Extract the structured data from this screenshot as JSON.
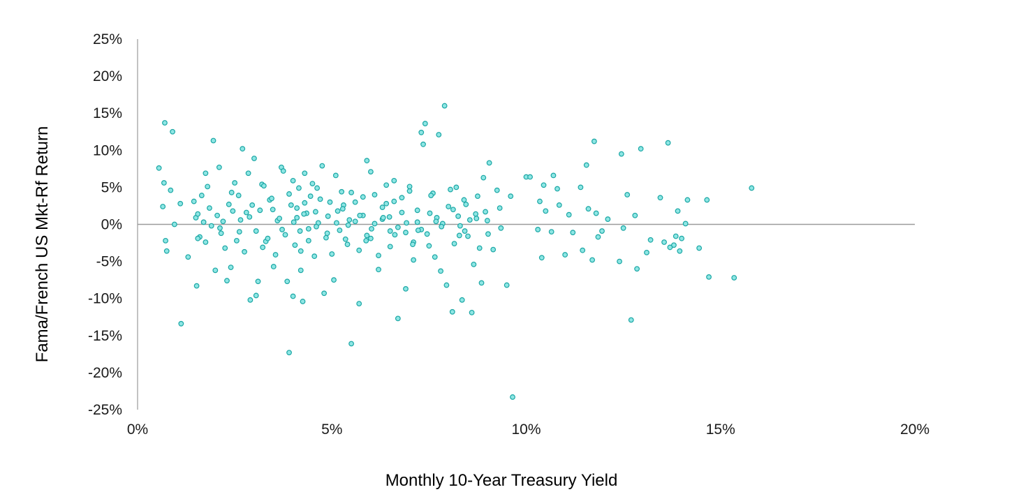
{
  "chart_data": {
    "type": "scatter",
    "title": "",
    "xlabel": "Monthly 10-Year Treasury Yield",
    "ylabel": "Fama/French US Mkt-Rf Return",
    "xlim": [
      0,
      20
    ],
    "ylim": [
      -25,
      25
    ],
    "x_ticks": [
      0,
      5,
      10,
      15,
      20
    ],
    "y_ticks": [
      25,
      20,
      15,
      10,
      5,
      0,
      -5,
      -10,
      -15,
      -20,
      -25
    ],
    "x_tick_labels": [
      "0%",
      "5%",
      "10%",
      "15%",
      "20%"
    ],
    "y_tick_labels": [
      "25%",
      "20%",
      "15%",
      "10%",
      "5%",
      "0%",
      "-5%",
      "-10%",
      "-15%",
      "-20%",
      "-25%"
    ],
    "grid": false,
    "legend": "none",
    "colors": {
      "marker_fill": "#8ee6e4",
      "marker_stroke": "#1aa6a4",
      "zero_line": "#9a9a9a",
      "axis_line": "#9a9a9a"
    },
    "series": [
      {
        "points": [
          [
            0.55,
            7.6
          ],
          [
            0.68,
            5.6
          ],
          [
            0.7,
            13.7
          ],
          [
            0.72,
            -2.2
          ],
          [
            0.75,
            -3.6
          ],
          [
            0.85,
            4.6
          ],
          [
            0.9,
            12.5
          ],
          [
            0.95,
            0.0
          ],
          [
            0.65,
            2.4
          ],
          [
            1.1,
            2.8
          ],
          [
            1.12,
            -13.4
          ],
          [
            1.3,
            -4.4
          ],
          [
            1.45,
            3.1
          ],
          [
            1.5,
            0.9
          ],
          [
            1.52,
            -8.3
          ],
          [
            1.55,
            1.4
          ],
          [
            1.6,
            -1.7
          ],
          [
            1.65,
            3.9
          ],
          [
            1.7,
            0.3
          ],
          [
            1.75,
            -2.4
          ],
          [
            1.8,
            5.1
          ],
          [
            1.85,
            2.2
          ],
          [
            1.9,
            -0.2
          ],
          [
            1.95,
            11.3
          ],
          [
            2.0,
            -6.2
          ],
          [
            2.05,
            1.2
          ],
          [
            2.1,
            7.7
          ],
          [
            2.15,
            -1.2
          ],
          [
            2.2,
            0.4
          ],
          [
            2.25,
            -3.2
          ],
          [
            2.3,
            -7.6
          ],
          [
            2.35,
            2.7
          ],
          [
            2.4,
            -5.8
          ],
          [
            2.45,
            1.8
          ],
          [
            2.5,
            5.6
          ],
          [
            2.55,
            -2.2
          ],
          [
            2.6,
            3.9
          ],
          [
            2.65,
            0.6
          ],
          [
            2.7,
            10.2
          ],
          [
            2.75,
            -3.7
          ],
          [
            2.8,
            1.6
          ],
          [
            2.85,
            6.9
          ],
          [
            2.9,
            -10.2
          ],
          [
            2.95,
            2.6
          ],
          [
            3.0,
            8.9
          ],
          [
            3.05,
            -0.9
          ],
          [
            3.1,
            -7.7
          ],
          [
            3.2,
            5.4
          ],
          [
            3.3,
            -2.3
          ],
          [
            3.4,
            3.3
          ],
          [
            3.5,
            -5.7
          ],
          [
            3.6,
            0.5
          ],
          [
            3.7,
            7.7
          ],
          [
            3.8,
            -1.4
          ],
          [
            3.9,
            4.1
          ],
          [
            4.0,
            -9.7
          ],
          [
            4.1,
            2.2
          ],
          [
            4.2,
            -3.6
          ],
          [
            4.3,
            6.9
          ],
          [
            4.4,
            -0.6
          ],
          [
            3.05,
            -9.6
          ],
          [
            3.15,
            1.9
          ],
          [
            3.25,
            5.2
          ],
          [
            3.35,
            -1.9
          ],
          [
            3.45,
            3.5
          ],
          [
            3.55,
            -4.1
          ],
          [
            3.65,
            0.8
          ],
          [
            3.75,
            7.2
          ],
          [
            3.85,
            -7.7
          ],
          [
            3.95,
            2.6
          ],
          [
            4.05,
            -2.8
          ],
          [
            4.15,
            4.9
          ],
          [
            4.25,
            -10.4
          ],
          [
            4.35,
            1.5
          ],
          [
            4.45,
            3.8
          ],
          [
            4.55,
            -4.3
          ],
          [
            4.65,
            0.2
          ],
          [
            4.75,
            7.9
          ],
          [
            4.85,
            -1.8
          ],
          [
            4.95,
            3.0
          ],
          [
            3.9,
            -17.3
          ],
          [
            4.0,
            5.9
          ],
          [
            4.1,
            0.9
          ],
          [
            4.2,
            -6.2
          ],
          [
            4.3,
            2.9
          ],
          [
            4.4,
            -2.2
          ],
          [
            4.5,
            5.5
          ],
          [
            4.6,
            -0.3
          ],
          [
            4.7,
            3.4
          ],
          [
            4.8,
            -9.3
          ],
          [
            4.9,
            1.1
          ],
          [
            5.0,
            -4.0
          ],
          [
            5.1,
            6.6
          ],
          [
            5.2,
            -0.8
          ],
          [
            5.3,
            2.6
          ],
          [
            5.4,
            -2.7
          ],
          [
            5.5,
            4.3
          ],
          [
            5.6,
            0.4
          ],
          [
            5.7,
            -10.7
          ],
          [
            5.8,
            3.7
          ],
          [
            5.9,
            -1.5
          ],
          [
            6.0,
            7.1
          ],
          [
            6.1,
            0.1
          ],
          [
            6.2,
            -4.2
          ],
          [
            6.3,
            2.3
          ],
          [
            6.4,
            5.3
          ],
          [
            6.5,
            -0.9
          ],
          [
            6.6,
            3.1
          ],
          [
            5.05,
            -7.5
          ],
          [
            5.15,
            1.8
          ],
          [
            5.25,
            4.4
          ],
          [
            5.35,
            -2.0
          ],
          [
            5.45,
            0.6
          ],
          [
            5.5,
            -16.1
          ],
          [
            5.6,
            3.0
          ],
          [
            5.7,
            -3.5
          ],
          [
            5.8,
            1.2
          ],
          [
            5.9,
            8.6
          ],
          [
            6.0,
            -1.9
          ],
          [
            6.1,
            4.0
          ],
          [
            6.2,
            -6.1
          ],
          [
            6.3,
            0.7
          ],
          [
            6.4,
            2.8
          ],
          [
            6.5,
            -3.0
          ],
          [
            6.6,
            5.9
          ],
          [
            6.7,
            -0.4
          ],
          [
            6.8,
            1.6
          ],
          [
            6.9,
            -8.7
          ],
          [
            7.0,
            4.5
          ],
          [
            7.1,
            -2.4
          ],
          [
            7.2,
            0.3
          ],
          [
            7.3,
            12.4
          ],
          [
            6.7,
            -12.7
          ],
          [
            6.8,
            3.6
          ],
          [
            6.9,
            -1.1
          ],
          [
            7.0,
            5.1
          ],
          [
            7.1,
            -4.8
          ],
          [
            7.2,
            1.9
          ],
          [
            7.3,
            -0.7
          ],
          [
            7.4,
            13.6
          ],
          [
            7.5,
            -2.9
          ],
          [
            7.6,
            4.2
          ],
          [
            7.7,
            0.9
          ],
          [
            7.8,
            -6.3
          ],
          [
            7.9,
            16.0
          ],
          [
            8.0,
            2.4
          ],
          [
            8.1,
            -11.8
          ],
          [
            8.2,
            5.0
          ],
          [
            8.3,
            -0.2
          ],
          [
            8.4,
            3.3
          ],
          [
            8.5,
            -1.6
          ],
          [
            8.6,
            -11.9
          ],
          [
            8.7,
            1.4
          ],
          [
            8.8,
            -3.2
          ],
          [
            8.9,
            6.3
          ],
          [
            9.0,
            0.5
          ],
          [
            7.35,
            10.8
          ],
          [
            7.45,
            -1.3
          ],
          [
            7.55,
            3.9
          ],
          [
            7.65,
            -4.4
          ],
          [
            7.75,
            12.1
          ],
          [
            7.85,
            0.1
          ],
          [
            7.95,
            -8.2
          ],
          [
            8.05,
            4.7
          ],
          [
            8.15,
            -2.6
          ],
          [
            8.25,
            1.1
          ],
          [
            8.35,
            -10.2
          ],
          [
            8.45,
            2.7
          ],
          [
            8.55,
            0.6
          ],
          [
            8.65,
            -5.4
          ],
          [
            8.75,
            3.8
          ],
          [
            8.85,
            -7.9
          ],
          [
            8.95,
            1.7
          ],
          [
            9.05,
            8.3
          ],
          [
            9.15,
            -3.4
          ],
          [
            9.25,
            4.6
          ],
          [
            9.35,
            -0.5
          ],
          [
            9.5,
            -8.2
          ],
          [
            9.6,
            3.8
          ],
          [
            9.65,
            -23.3
          ],
          [
            10.0,
            6.4
          ],
          [
            10.1,
            6.4
          ],
          [
            10.3,
            -0.7
          ],
          [
            10.35,
            3.1
          ],
          [
            10.4,
            -4.5
          ],
          [
            10.45,
            5.3
          ],
          [
            10.5,
            1.8
          ],
          [
            10.65,
            -1.0
          ],
          [
            10.7,
            6.6
          ],
          [
            10.8,
            4.8
          ],
          [
            10.85,
            2.6
          ],
          [
            11.0,
            -4.1
          ],
          [
            11.1,
            1.3
          ],
          [
            11.2,
            -1.1
          ],
          [
            11.4,
            5.0
          ],
          [
            11.45,
            -3.5
          ],
          [
            11.55,
            8.0
          ],
          [
            11.6,
            2.1
          ],
          [
            11.7,
            -4.8
          ],
          [
            11.75,
            11.2
          ],
          [
            11.8,
            1.5
          ],
          [
            11.85,
            -1.7
          ],
          [
            11.95,
            -0.9
          ],
          [
            12.1,
            0.7
          ],
          [
            12.4,
            -5.0
          ],
          [
            12.45,
            9.5
          ],
          [
            12.5,
            -0.5
          ],
          [
            12.6,
            4.0
          ],
          [
            12.7,
            -12.9
          ],
          [
            12.8,
            1.2
          ],
          [
            12.85,
            -6.0
          ],
          [
            12.95,
            10.2
          ],
          [
            13.1,
            -3.8
          ],
          [
            13.2,
            -2.1
          ],
          [
            13.45,
            3.6
          ],
          [
            13.55,
            -2.4
          ],
          [
            13.65,
            11.0
          ],
          [
            13.7,
            -3.1
          ],
          [
            13.8,
            -2.8
          ],
          [
            13.85,
            -1.6
          ],
          [
            13.9,
            1.8
          ],
          [
            13.95,
            -3.6
          ],
          [
            14.0,
            -1.9
          ],
          [
            14.1,
            0.1
          ],
          [
            14.15,
            3.3
          ],
          [
            14.45,
            -3.2
          ],
          [
            14.65,
            3.3
          ],
          [
            14.7,
            -7.1
          ],
          [
            15.35,
            -7.2
          ],
          [
            15.8,
            4.9
          ],
          [
            1.55,
            -1.9
          ],
          [
            1.75,
            6.9
          ],
          [
            2.12,
            -0.5
          ],
          [
            2.42,
            4.3
          ],
          [
            2.62,
            -1.0
          ],
          [
            2.88,
            1.0
          ],
          [
            3.22,
            -3.1
          ],
          [
            3.48,
            2.0
          ],
          [
            3.72,
            -0.7
          ],
          [
            4.02,
            0.3
          ],
          [
            4.28,
            1.4
          ],
          [
            4.62,
            4.9
          ],
          [
            4.88,
            -1.2
          ],
          [
            5.12,
            0.2
          ],
          [
            5.42,
            -0.1
          ],
          [
            5.72,
            1.2
          ],
          [
            6.02,
            -0.6
          ],
          [
            6.32,
            0.9
          ],
          [
            6.62,
            -1.4
          ],
          [
            6.92,
            0.2
          ],
          [
            7.22,
            -0.8
          ],
          [
            7.52,
            1.5
          ],
          [
            7.82,
            -0.3
          ],
          [
            8.12,
            2.0
          ],
          [
            8.42,
            -0.9
          ],
          [
            8.72,
            0.8
          ],
          [
            9.02,
            -1.3
          ],
          [
            9.32,
            2.2
          ],
          [
            4.18,
            -0.9
          ],
          [
            4.58,
            1.7
          ],
          [
            5.28,
            2.1
          ],
          [
            5.88,
            -2.2
          ],
          [
            6.48,
            1.0
          ],
          [
            7.08,
            -2.7
          ],
          [
            7.68,
            0.4
          ],
          [
            8.28,
            -1.5
          ]
        ]
      }
    ]
  }
}
